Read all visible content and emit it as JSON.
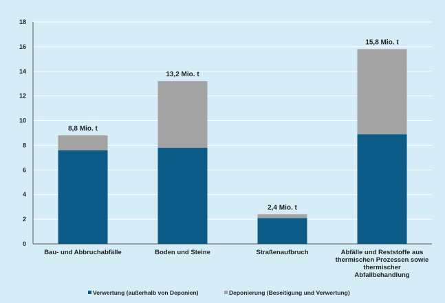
{
  "chart_data": {
    "type": "bar",
    "stacked": true,
    "categories": [
      [
        "Bau- und Abbruchabfälle"
      ],
      [
        "Boden und Steine"
      ],
      [
        "Straßenaufbruch"
      ],
      [
        "Abfälle und Reststoffe aus",
        "thermischen Prozessen sowie",
        "thermischer",
        "Abfallbehandlung"
      ]
    ],
    "series": [
      {
        "name": "Verwertung (außerhalb von Deponien)",
        "values": [
          7.6,
          7.8,
          2.1,
          8.9
        ],
        "color": "#0b5b86"
      },
      {
        "name": "Deponierung (Beseitigung und Verwertung)",
        "values": [
          1.2,
          5.4,
          0.3,
          6.9
        ],
        "color": "#a3a3a3"
      }
    ],
    "totals_labels": [
      "8,8 Mio. t",
      "13,2 Mio. t",
      "2,4 Mio. t",
      "15,8 Mio. t"
    ],
    "ylim": [
      0,
      18
    ],
    "yticks": [
      0,
      2,
      4,
      6,
      8,
      10,
      12,
      14,
      16,
      18
    ],
    "grid": true,
    "legend": "bottom",
    "colors": {
      "background": "#d6ecf6",
      "grid": "#ffffff"
    }
  }
}
